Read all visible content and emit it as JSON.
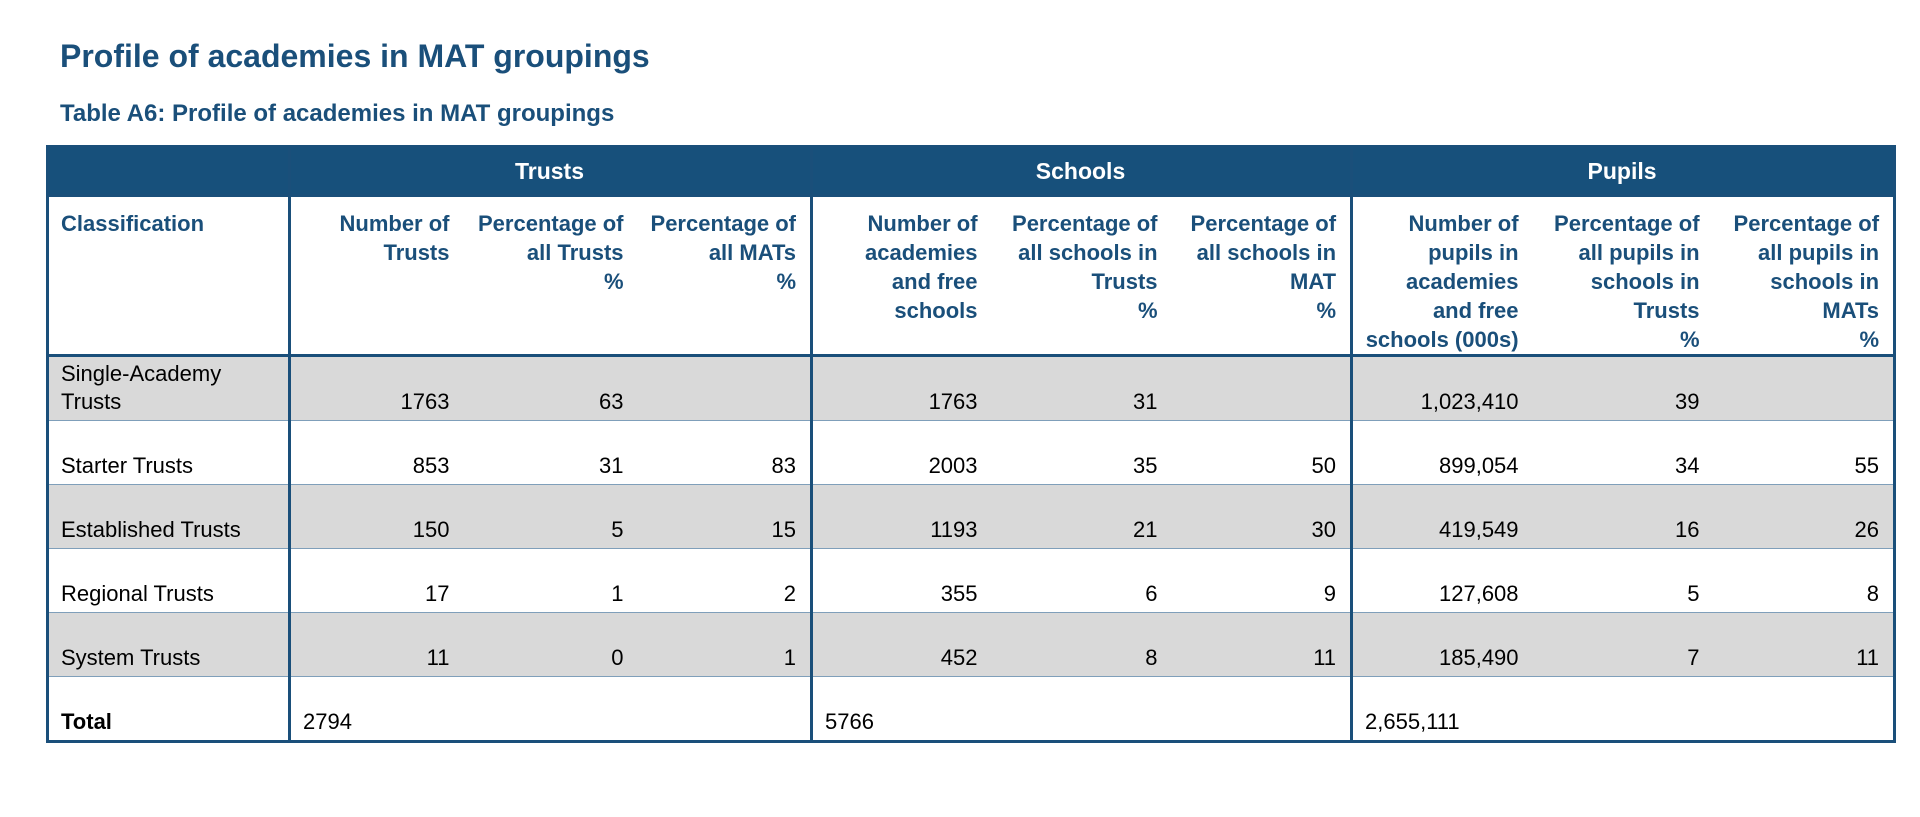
{
  "title": "Profile of academies in MAT groupings",
  "subtitle": "Table A6: Profile of academies in MAT groupings",
  "colors": {
    "header_band": "#17507b",
    "heading_text": "#1a4f7a",
    "row_shade": "#d9d9d9"
  },
  "table": {
    "groups": [
      "Trusts",
      "Schools",
      "Pupils"
    ],
    "columns": [
      {
        "label": "Classification",
        "unit": ""
      },
      {
        "label": "Number of Trusts",
        "unit": ""
      },
      {
        "label": "Percentage of all Trusts",
        "unit": "%"
      },
      {
        "label": "Percentage of all MATs",
        "unit": "%"
      },
      {
        "label": "Number of academies and free schools",
        "unit": ""
      },
      {
        "label": "Percentage of all schools in Trusts",
        "unit": "%"
      },
      {
        "label": "Percentage of all schools in MAT",
        "unit": "%"
      },
      {
        "label": "Number of pupils in academies and free schools (000s)",
        "unit": ""
      },
      {
        "label": "Percentage of all pupils in schools in Trusts",
        "unit": "%"
      },
      {
        "label": "Percentage of all pupils in schools in MATs",
        "unit": "%"
      }
    ],
    "rows": [
      {
        "cells": [
          "Single-Academy Trusts",
          "1763",
          "63",
          "",
          "1763",
          "31",
          "",
          "1,023,410",
          "39",
          ""
        ],
        "shaded": true
      },
      {
        "cells": [
          "Starter Trusts",
          "853",
          "31",
          "83",
          "2003",
          "35",
          "50",
          "899,054",
          "34",
          "55"
        ],
        "shaded": false
      },
      {
        "cells": [
          "Established Trusts",
          "150",
          "5",
          "15",
          "1193",
          "21",
          "30",
          "419,549",
          "16",
          "26"
        ],
        "shaded": true
      },
      {
        "cells": [
          "Regional Trusts",
          "17",
          "1",
          "2",
          "355",
          "6",
          "9",
          "127,608",
          "5",
          "8"
        ],
        "shaded": false
      },
      {
        "cells": [
          "System Trusts",
          "11",
          "0",
          "1",
          "452",
          "8",
          "11",
          "185,490",
          "7",
          "11"
        ],
        "shaded": true
      },
      {
        "cells": [
          "Total",
          "2794",
          "",
          "",
          "5766",
          "",
          "",
          "2,655,111",
          "",
          ""
        ],
        "shaded": false
      }
    ]
  }
}
